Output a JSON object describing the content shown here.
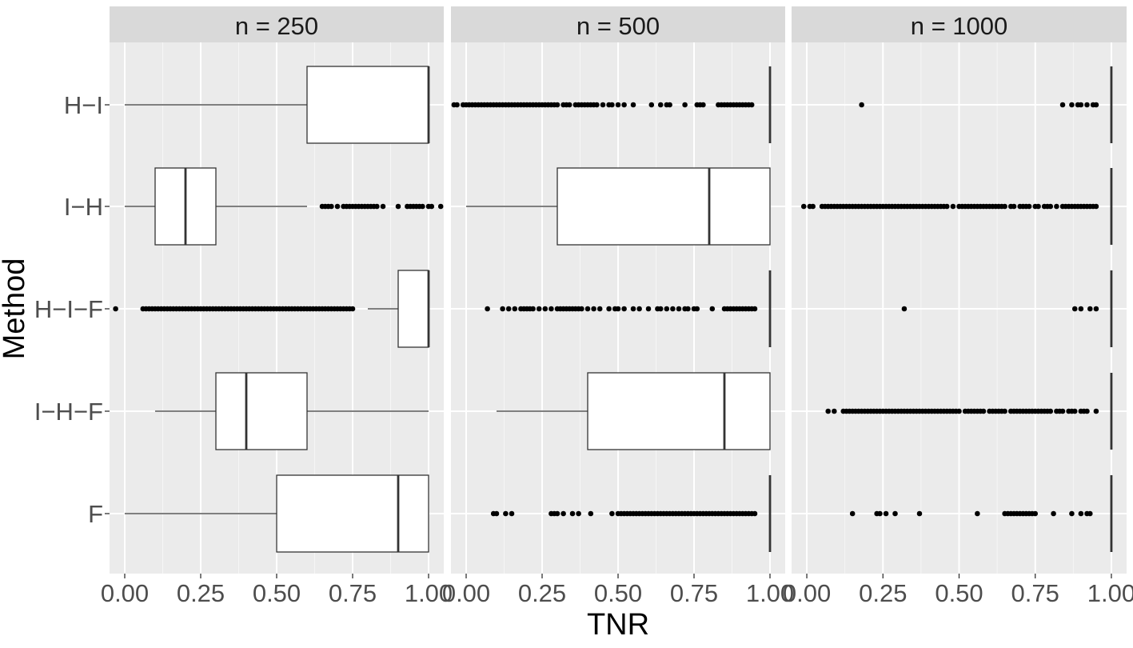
{
  "chart_data": {
    "type": "boxplot",
    "xlabel": "TNR",
    "ylabel": "Method",
    "xlim": [
      -0.05,
      1.05
    ],
    "x_ticks": [
      "0.00",
      "0.25",
      "0.50",
      "0.75",
      "1.00"
    ],
    "x_tick_values": [
      0,
      0.25,
      0.5,
      0.75,
      1.0
    ],
    "categories": [
      "H−I",
      "I−H",
      "H−I−F",
      "I−H−F",
      "F"
    ],
    "grid": true,
    "facets": [
      {
        "label": "n = 250",
        "boxes": [
          {
            "method": "H−I",
            "whisker_low": 0.0,
            "q1": 0.6,
            "median": 1.0,
            "q3": 1.0,
            "whisker_high": 1.0,
            "outliers": []
          },
          {
            "method": "I−H",
            "whisker_low": 0.0,
            "q1": 0.1,
            "median": 0.2,
            "q3": 0.3,
            "whisker_high": 0.6,
            "outliers": [
              0.65,
              0.66,
              0.67,
              0.68,
              0.7,
              0.72,
              0.73,
              0.74,
              0.75,
              0.76,
              0.77,
              0.78,
              0.79,
              0.8,
              0.81,
              0.82,
              0.83,
              0.85,
              0.9,
              0.93,
              0.94,
              0.95,
              0.96,
              0.97,
              0.98,
              1.0,
              1.01,
              1.04
            ]
          },
          {
            "method": "H−I−F",
            "whisker_low": 0.8,
            "q1": 0.9,
            "median": 1.0,
            "q3": 1.0,
            "whisker_high": 1.0,
            "outliers": [
              -0.03,
              0.06,
              0.07,
              0.08,
              0.09,
              0.1,
              0.11,
              0.12,
              0.13,
              0.14,
              0.15,
              0.16,
              0.17,
              0.18,
              0.19,
              0.2,
              0.21,
              0.22,
              0.23,
              0.24,
              0.25,
              0.26,
              0.27,
              0.28,
              0.29,
              0.3,
              0.31,
              0.32,
              0.33,
              0.34,
              0.35,
              0.36,
              0.37,
              0.38,
              0.39,
              0.4,
              0.41,
              0.42,
              0.43,
              0.44,
              0.45,
              0.46,
              0.47,
              0.48,
              0.49,
              0.5,
              0.51,
              0.52,
              0.53,
              0.54,
              0.55,
              0.56,
              0.57,
              0.58,
              0.59,
              0.6,
              0.61,
              0.62,
              0.63,
              0.64,
              0.65,
              0.66,
              0.67,
              0.68,
              0.69,
              0.7,
              0.71,
              0.72,
              0.73,
              0.74,
              0.75
            ]
          },
          {
            "method": "I−H−F",
            "whisker_low": 0.1,
            "q1": 0.3,
            "median": 0.4,
            "q3": 0.6,
            "whisker_high": 1.0,
            "outliers": []
          },
          {
            "method": "F",
            "whisker_low": 0.0,
            "q1": 0.5,
            "median": 0.9,
            "q3": 1.0,
            "whisker_high": 1.0,
            "outliers": []
          }
        ]
      },
      {
        "label": "n = 500",
        "boxes": [
          {
            "method": "H−I",
            "whisker_low": 1.0,
            "q1": 1.0,
            "median": 1.0,
            "q3": 1.0,
            "whisker_high": 1.0,
            "outliers": [
              -0.04,
              -0.03,
              -0.01,
              0.0,
              0.01,
              0.02,
              0.03,
              0.04,
              0.05,
              0.06,
              0.07,
              0.08,
              0.09,
              0.1,
              0.11,
              0.12,
              0.13,
              0.14,
              0.15,
              0.16,
              0.17,
              0.18,
              0.19,
              0.2,
              0.21,
              0.22,
              0.23,
              0.24,
              0.25,
              0.26,
              0.27,
              0.28,
              0.29,
              0.3,
              0.32,
              0.33,
              0.34,
              0.36,
              0.37,
              0.38,
              0.39,
              0.4,
              0.41,
              0.42,
              0.43,
              0.45,
              0.47,
              0.48,
              0.5,
              0.52,
              0.55,
              0.61,
              0.64,
              0.66,
              0.67,
              0.72,
              0.76,
              0.77,
              0.78,
              0.83,
              0.84,
              0.85,
              0.86,
              0.87,
              0.88,
              0.89,
              0.9,
              0.91,
              0.92,
              0.93,
              0.94
            ]
          },
          {
            "method": "I−H",
            "whisker_low": 0.0,
            "q1": 0.3,
            "median": 0.8,
            "q3": 1.0,
            "whisker_high": 1.0,
            "outliers": []
          },
          {
            "method": "H−I−F",
            "whisker_low": 1.0,
            "q1": 1.0,
            "median": 1.0,
            "q3": 1.0,
            "whisker_high": 1.0,
            "outliers": [
              0.07,
              0.12,
              0.14,
              0.16,
              0.18,
              0.19,
              0.2,
              0.21,
              0.22,
              0.24,
              0.26,
              0.28,
              0.3,
              0.31,
              0.32,
              0.33,
              0.34,
              0.35,
              0.36,
              0.37,
              0.38,
              0.4,
              0.42,
              0.44,
              0.47,
              0.49,
              0.5,
              0.52,
              0.55,
              0.57,
              0.6,
              0.63,
              0.64,
              0.66,
              0.68,
              0.7,
              0.72,
              0.73,
              0.75,
              0.76,
              0.81,
              0.85,
              0.86,
              0.87,
              0.88,
              0.89,
              0.9,
              0.91,
              0.92,
              0.93,
              0.94,
              0.95
            ]
          },
          {
            "method": "I−H−F",
            "whisker_low": 0.1,
            "q1": 0.4,
            "median": 0.85,
            "q3": 1.0,
            "whisker_high": 1.0,
            "outliers": []
          },
          {
            "method": "F",
            "whisker_low": 1.0,
            "q1": 1.0,
            "median": 1.0,
            "q3": 1.0,
            "whisker_high": 1.0,
            "outliers": [
              0.09,
              0.1,
              0.13,
              0.15,
              0.28,
              0.29,
              0.3,
              0.32,
              0.35,
              0.37,
              0.41,
              0.48,
              0.5,
              0.51,
              0.52,
              0.53,
              0.54,
              0.55,
              0.56,
              0.57,
              0.58,
              0.59,
              0.6,
              0.61,
              0.62,
              0.63,
              0.64,
              0.65,
              0.66,
              0.67,
              0.68,
              0.69,
              0.7,
              0.71,
              0.72,
              0.73,
              0.74,
              0.75,
              0.76,
              0.77,
              0.78,
              0.79,
              0.8,
              0.81,
              0.82,
              0.83,
              0.84,
              0.85,
              0.86,
              0.87,
              0.88,
              0.89,
              0.9,
              0.91,
              0.92,
              0.93,
              0.94,
              0.95
            ]
          }
        ]
      },
      {
        "label": "n = 1000",
        "boxes": [
          {
            "method": "H−I",
            "whisker_low": 1.0,
            "q1": 1.0,
            "median": 1.0,
            "q3": 1.0,
            "whisker_high": 1.0,
            "outliers": [
              0.18,
              0.84,
              0.87,
              0.89,
              0.9,
              0.92,
              0.94,
              0.95
            ]
          },
          {
            "method": "I−H",
            "whisker_low": 1.0,
            "q1": 1.0,
            "median": 1.0,
            "q3": 1.0,
            "whisker_high": 1.0,
            "outliers": [
              -0.01,
              0.01,
              0.02,
              0.05,
              0.06,
              0.07,
              0.08,
              0.09,
              0.1,
              0.11,
              0.12,
              0.13,
              0.14,
              0.15,
              0.16,
              0.17,
              0.18,
              0.19,
              0.2,
              0.21,
              0.22,
              0.23,
              0.24,
              0.25,
              0.26,
              0.27,
              0.28,
              0.29,
              0.3,
              0.31,
              0.32,
              0.33,
              0.34,
              0.35,
              0.36,
              0.37,
              0.38,
              0.39,
              0.4,
              0.41,
              0.42,
              0.43,
              0.44,
              0.45,
              0.46,
              0.48,
              0.5,
              0.51,
              0.52,
              0.53,
              0.54,
              0.55,
              0.56,
              0.57,
              0.58,
              0.59,
              0.6,
              0.61,
              0.62,
              0.63,
              0.64,
              0.65,
              0.67,
              0.68,
              0.7,
              0.71,
              0.72,
              0.73,
              0.75,
              0.76,
              0.78,
              0.79,
              0.8,
              0.82,
              0.84,
              0.85,
              0.86,
              0.87,
              0.88,
              0.89,
              0.9,
              0.91,
              0.92,
              0.93,
              0.94,
              0.95
            ]
          },
          {
            "method": "H−I−F",
            "whisker_low": 1.0,
            "q1": 1.0,
            "median": 1.0,
            "q3": 1.0,
            "whisker_high": 1.0,
            "outliers": [
              0.32,
              0.88,
              0.9,
              0.93,
              0.95
            ]
          },
          {
            "method": "I−H−F",
            "whisker_low": 1.0,
            "q1": 1.0,
            "median": 1.0,
            "q3": 1.0,
            "whisker_high": 1.0,
            "outliers": [
              0.07,
              0.09,
              0.12,
              0.13,
              0.14,
              0.15,
              0.16,
              0.17,
              0.18,
              0.19,
              0.2,
              0.21,
              0.22,
              0.23,
              0.24,
              0.25,
              0.26,
              0.27,
              0.28,
              0.29,
              0.3,
              0.31,
              0.32,
              0.33,
              0.34,
              0.35,
              0.36,
              0.37,
              0.38,
              0.39,
              0.4,
              0.41,
              0.42,
              0.43,
              0.44,
              0.45,
              0.46,
              0.47,
              0.48,
              0.49,
              0.5,
              0.52,
              0.53,
              0.54,
              0.55,
              0.56,
              0.57,
              0.58,
              0.6,
              0.61,
              0.62,
              0.63,
              0.64,
              0.65,
              0.67,
              0.68,
              0.69,
              0.7,
              0.71,
              0.72,
              0.73,
              0.74,
              0.75,
              0.76,
              0.77,
              0.78,
              0.79,
              0.8,
              0.82,
              0.83,
              0.84,
              0.86,
              0.87,
              0.88,
              0.9,
              0.91,
              0.92,
              0.95
            ]
          },
          {
            "method": "F",
            "whisker_low": 1.0,
            "q1": 1.0,
            "median": 1.0,
            "q3": 1.0,
            "whisker_high": 1.0,
            "outliers": [
              0.15,
              0.23,
              0.24,
              0.26,
              0.29,
              0.37,
              0.56,
              0.65,
              0.66,
              0.67,
              0.68,
              0.69,
              0.7,
              0.71,
              0.72,
              0.73,
              0.74,
              0.75,
              0.81,
              0.87,
              0.9,
              0.92,
              0.93
            ]
          }
        ]
      }
    ],
    "colors": {
      "panel_background": "#ebebeb",
      "grid_major": "#ffffff",
      "strip_background": "#d9d9d9",
      "box_fill": "#ffffff",
      "box_line": "#333333",
      "outlier": "#000000"
    }
  }
}
